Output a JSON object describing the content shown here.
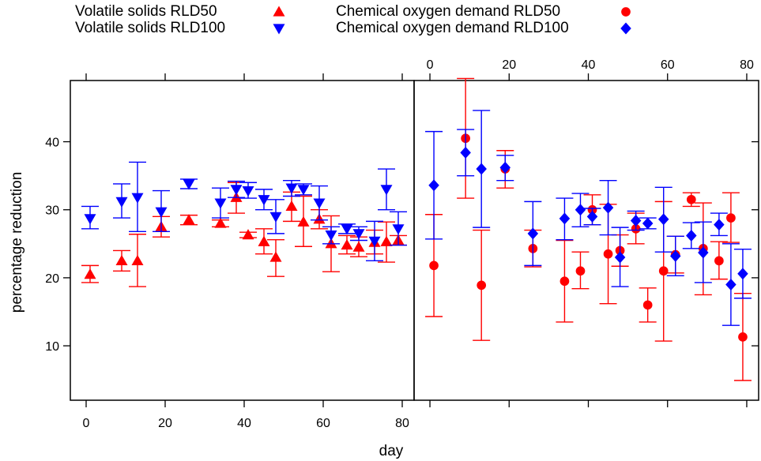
{
  "chart_data": [
    {
      "type": "scatter",
      "panel": "left",
      "xlabel": "day",
      "ylabel": "percentage reduction",
      "xlim": [
        -4,
        83
      ],
      "ylim": [
        2,
        49
      ],
      "x_ticks": [
        0,
        20,
        40,
        60,
        80
      ],
      "y_ticks": [
        10,
        20,
        30,
        40
      ],
      "x_tick_side": "bottom",
      "series": [
        {
          "name": "Volatile solids RLD50",
          "marker": "triangle-up",
          "color": "#ff0000",
          "points": [
            {
              "x": 1,
              "y": 20.5,
              "lo": 19.3,
              "hi": 21.8
            },
            {
              "x": 9,
              "y": 22.5,
              "lo": 21.0,
              "hi": 24.0
            },
            {
              "x": 13,
              "y": 22.5,
              "lo": 18.7,
              "hi": 26.4
            },
            {
              "x": 19,
              "y": 27.5,
              "lo": 26.0,
              "hi": 29.0
            },
            {
              "x": 26,
              "y": 28.5,
              "lo": 27.8,
              "hi": 29.2
            },
            {
              "x": 34,
              "y": 28.0,
              "lo": 27.5,
              "hi": 28.5
            },
            {
              "x": 38,
              "y": 31.8,
              "lo": 29.5,
              "hi": 34.0
            },
            {
              "x": 41,
              "y": 26.3,
              "lo": 25.9,
              "hi": 26.7
            },
            {
              "x": 45,
              "y": 25.3,
              "lo": 23.5,
              "hi": 27.2
            },
            {
              "x": 48,
              "y": 23.0,
              "lo": 20.2,
              "hi": 25.6
            },
            {
              "x": 52,
              "y": 30.5,
              "lo": 28.3,
              "hi": 32.6
            },
            {
              "x": 55,
              "y": 28.2,
              "lo": 24.6,
              "hi": 32.0
            },
            {
              "x": 59,
              "y": 28.6,
              "lo": 27.2,
              "hi": 30.0
            },
            {
              "x": 62,
              "y": 25.0,
              "lo": 20.9,
              "hi": 29.1
            },
            {
              "x": 66,
              "y": 24.8,
              "lo": 23.5,
              "hi": 26.2
            },
            {
              "x": 69,
              "y": 24.5,
              "lo": 23.1,
              "hi": 26.0
            },
            {
              "x": 73,
              "y": 25.2,
              "lo": 23.5,
              "hi": 27.0
            },
            {
              "x": 76,
              "y": 25.3,
              "lo": 22.3,
              "hi": 28.2
            },
            {
              "x": 79,
              "y": 25.5,
              "lo": 24.8,
              "hi": 26.2
            }
          ]
        },
        {
          "name": "Volatile solids RLD100",
          "marker": "triangle-down",
          "color": "#0000ff",
          "points": [
            {
              "x": 1,
              "y": 28.7,
              "lo": 27.2,
              "hi": 30.5
            },
            {
              "x": 9,
              "y": 31.2,
              "lo": 28.8,
              "hi": 33.8
            },
            {
              "x": 13,
              "y": 31.8,
              "lo": 26.8,
              "hi": 37.0
            },
            {
              "x": 19,
              "y": 29.7,
              "lo": 26.8,
              "hi": 32.8
            },
            {
              "x": 26,
              "y": 33.8,
              "lo": 33.1,
              "hi": 34.5
            },
            {
              "x": 34,
              "y": 31.0,
              "lo": 28.8,
              "hi": 33.2
            },
            {
              "x": 38,
              "y": 33.0,
              "lo": 31.8,
              "hi": 34.2
            },
            {
              "x": 41,
              "y": 32.8,
              "lo": 31.7,
              "hi": 34.0
            },
            {
              "x": 45,
              "y": 31.5,
              "lo": 30.0,
              "hi": 33.0
            },
            {
              "x": 48,
              "y": 29.0,
              "lo": 26.5,
              "hi": 31.5
            },
            {
              "x": 52,
              "y": 33.2,
              "lo": 32.0,
              "hi": 34.3
            },
            {
              "x": 55,
              "y": 33.0,
              "lo": 32.2,
              "hi": 33.8
            },
            {
              "x": 59,
              "y": 31.0,
              "lo": 28.5,
              "hi": 33.5
            },
            {
              "x": 62,
              "y": 26.3,
              "lo": 25.0,
              "hi": 27.5
            },
            {
              "x": 66,
              "y": 27.2,
              "lo": 26.5,
              "hi": 27.9
            },
            {
              "x": 69,
              "y": 26.5,
              "lo": 25.5,
              "hi": 27.5
            },
            {
              "x": 73,
              "y": 25.4,
              "lo": 22.5,
              "hi": 28.3
            },
            {
              "x": 76,
              "y": 33.0,
              "lo": 30.0,
              "hi": 36.0
            },
            {
              "x": 79,
              "y": 27.2,
              "lo": 24.8,
              "hi": 29.7
            }
          ]
        }
      ]
    },
    {
      "type": "scatter",
      "panel": "right",
      "xlabel": "day",
      "ylabel": "percentage reduction",
      "xlim": [
        -4,
        83
      ],
      "ylim": [
        2,
        49
      ],
      "x_ticks": [
        0,
        20,
        40,
        60,
        80
      ],
      "y_ticks": [
        10,
        20,
        30,
        40
      ],
      "x_tick_side": "top",
      "series": [
        {
          "name": "Chemical oxygen demand RLD50",
          "marker": "circle",
          "color": "#ff0000",
          "points": [
            {
              "x": 1,
              "y": 21.8,
              "lo": 14.3,
              "hi": 29.3
            },
            {
              "x": 9,
              "y": 40.5,
              "lo": 31.7,
              "hi": 49.3
            },
            {
              "x": 13,
              "y": 18.9,
              "lo": 10.8,
              "hi": 27.0
            },
            {
              "x": 19,
              "y": 36.0,
              "lo": 33.2,
              "hi": 38.7
            },
            {
              "x": 26,
              "y": 24.3,
              "lo": 21.6,
              "hi": 27.0
            },
            {
              "x": 34,
              "y": 19.5,
              "lo": 13.5,
              "hi": 25.5
            },
            {
              "x": 38,
              "y": 21.0,
              "lo": 18.4,
              "hi": 23.8
            },
            {
              "x": 41,
              "y": 30.0,
              "lo": 27.8,
              "hi": 32.2
            },
            {
              "x": 45,
              "y": 23.5,
              "lo": 16.2,
              "hi": 30.8
            },
            {
              "x": 48,
              "y": 24.0,
              "lo": 21.7,
              "hi": 26.3
            },
            {
              "x": 52,
              "y": 27.2,
              "lo": 25.0,
              "hi": 29.5
            },
            {
              "x": 55,
              "y": 16.0,
              "lo": 13.5,
              "hi": 18.5
            },
            {
              "x": 59,
              "y": 21.0,
              "lo": 10.7,
              "hi": 31.2
            },
            {
              "x": 62,
              "y": 23.4,
              "lo": 20.7,
              "hi": 26.1
            },
            {
              "x": 66,
              "y": 31.5,
              "lo": 30.5,
              "hi": 32.5
            },
            {
              "x": 69,
              "y": 24.3,
              "lo": 17.5,
              "hi": 31.0
            },
            {
              "x": 73,
              "y": 22.5,
              "lo": 19.8,
              "hi": 25.3
            },
            {
              "x": 76,
              "y": 28.8,
              "lo": 25.2,
              "hi": 32.5
            },
            {
              "x": 79,
              "y": 11.3,
              "lo": 4.9,
              "hi": 17.7
            }
          ]
        },
        {
          "name": "Chemical oxygen demand RLD100",
          "marker": "diamond",
          "color": "#0000ff",
          "points": [
            {
              "x": 1,
              "y": 33.6,
              "lo": 25.7,
              "hi": 41.5
            },
            {
              "x": 9,
              "y": 38.4,
              "lo": 35.0,
              "hi": 41.8
            },
            {
              "x": 13,
              "y": 36.0,
              "lo": 27.4,
              "hi": 44.6
            },
            {
              "x": 19,
              "y": 36.2,
              "lo": 34.3,
              "hi": 38.0
            },
            {
              "x": 26,
              "y": 26.5,
              "lo": 21.8,
              "hi": 31.2
            },
            {
              "x": 34,
              "y": 28.7,
              "lo": 25.6,
              "hi": 31.7
            },
            {
              "x": 38,
              "y": 30.0,
              "lo": 27.5,
              "hi": 32.4
            },
            {
              "x": 41,
              "y": 29.0,
              "lo": 27.8,
              "hi": 30.2
            },
            {
              "x": 45,
              "y": 30.3,
              "lo": 26.3,
              "hi": 34.3
            },
            {
              "x": 48,
              "y": 23.0,
              "lo": 18.7,
              "hi": 27.4
            },
            {
              "x": 52,
              "y": 28.4,
              "lo": 27.0,
              "hi": 29.8
            },
            {
              "x": 55,
              "y": 28.0,
              "lo": 27.2,
              "hi": 28.8
            },
            {
              "x": 59,
              "y": 28.6,
              "lo": 23.8,
              "hi": 33.3
            },
            {
              "x": 62,
              "y": 23.2,
              "lo": 20.3,
              "hi": 26.1
            },
            {
              "x": 66,
              "y": 26.2,
              "lo": 24.3,
              "hi": 28.1
            },
            {
              "x": 69,
              "y": 23.7,
              "lo": 19.3,
              "hi": 28.2
            },
            {
              "x": 73,
              "y": 27.8,
              "lo": 26.2,
              "hi": 29.5
            },
            {
              "x": 76,
              "y": 19.0,
              "lo": 13.0,
              "hi": 25.0
            },
            {
              "x": 79,
              "y": 20.6,
              "lo": 17.0,
              "hi": 24.2
            }
          ]
        }
      ]
    }
  ],
  "legend": [
    {
      "label": "Volatile solids RLD50",
      "marker": "triangle-up",
      "color": "#ff0000"
    },
    {
      "label": "Volatile solids RLD100",
      "marker": "triangle-down",
      "color": "#0000ff"
    },
    {
      "label": "Chemical oxygen demand RLD50",
      "marker": "circle",
      "color": "#ff0000"
    },
    {
      "label": "Chemical oxygen demand RLD100",
      "marker": "diamond",
      "color": "#0000ff"
    }
  ],
  "legend_position": "top",
  "axis_labels": {
    "x": "day",
    "y": "percentage reduction"
  }
}
